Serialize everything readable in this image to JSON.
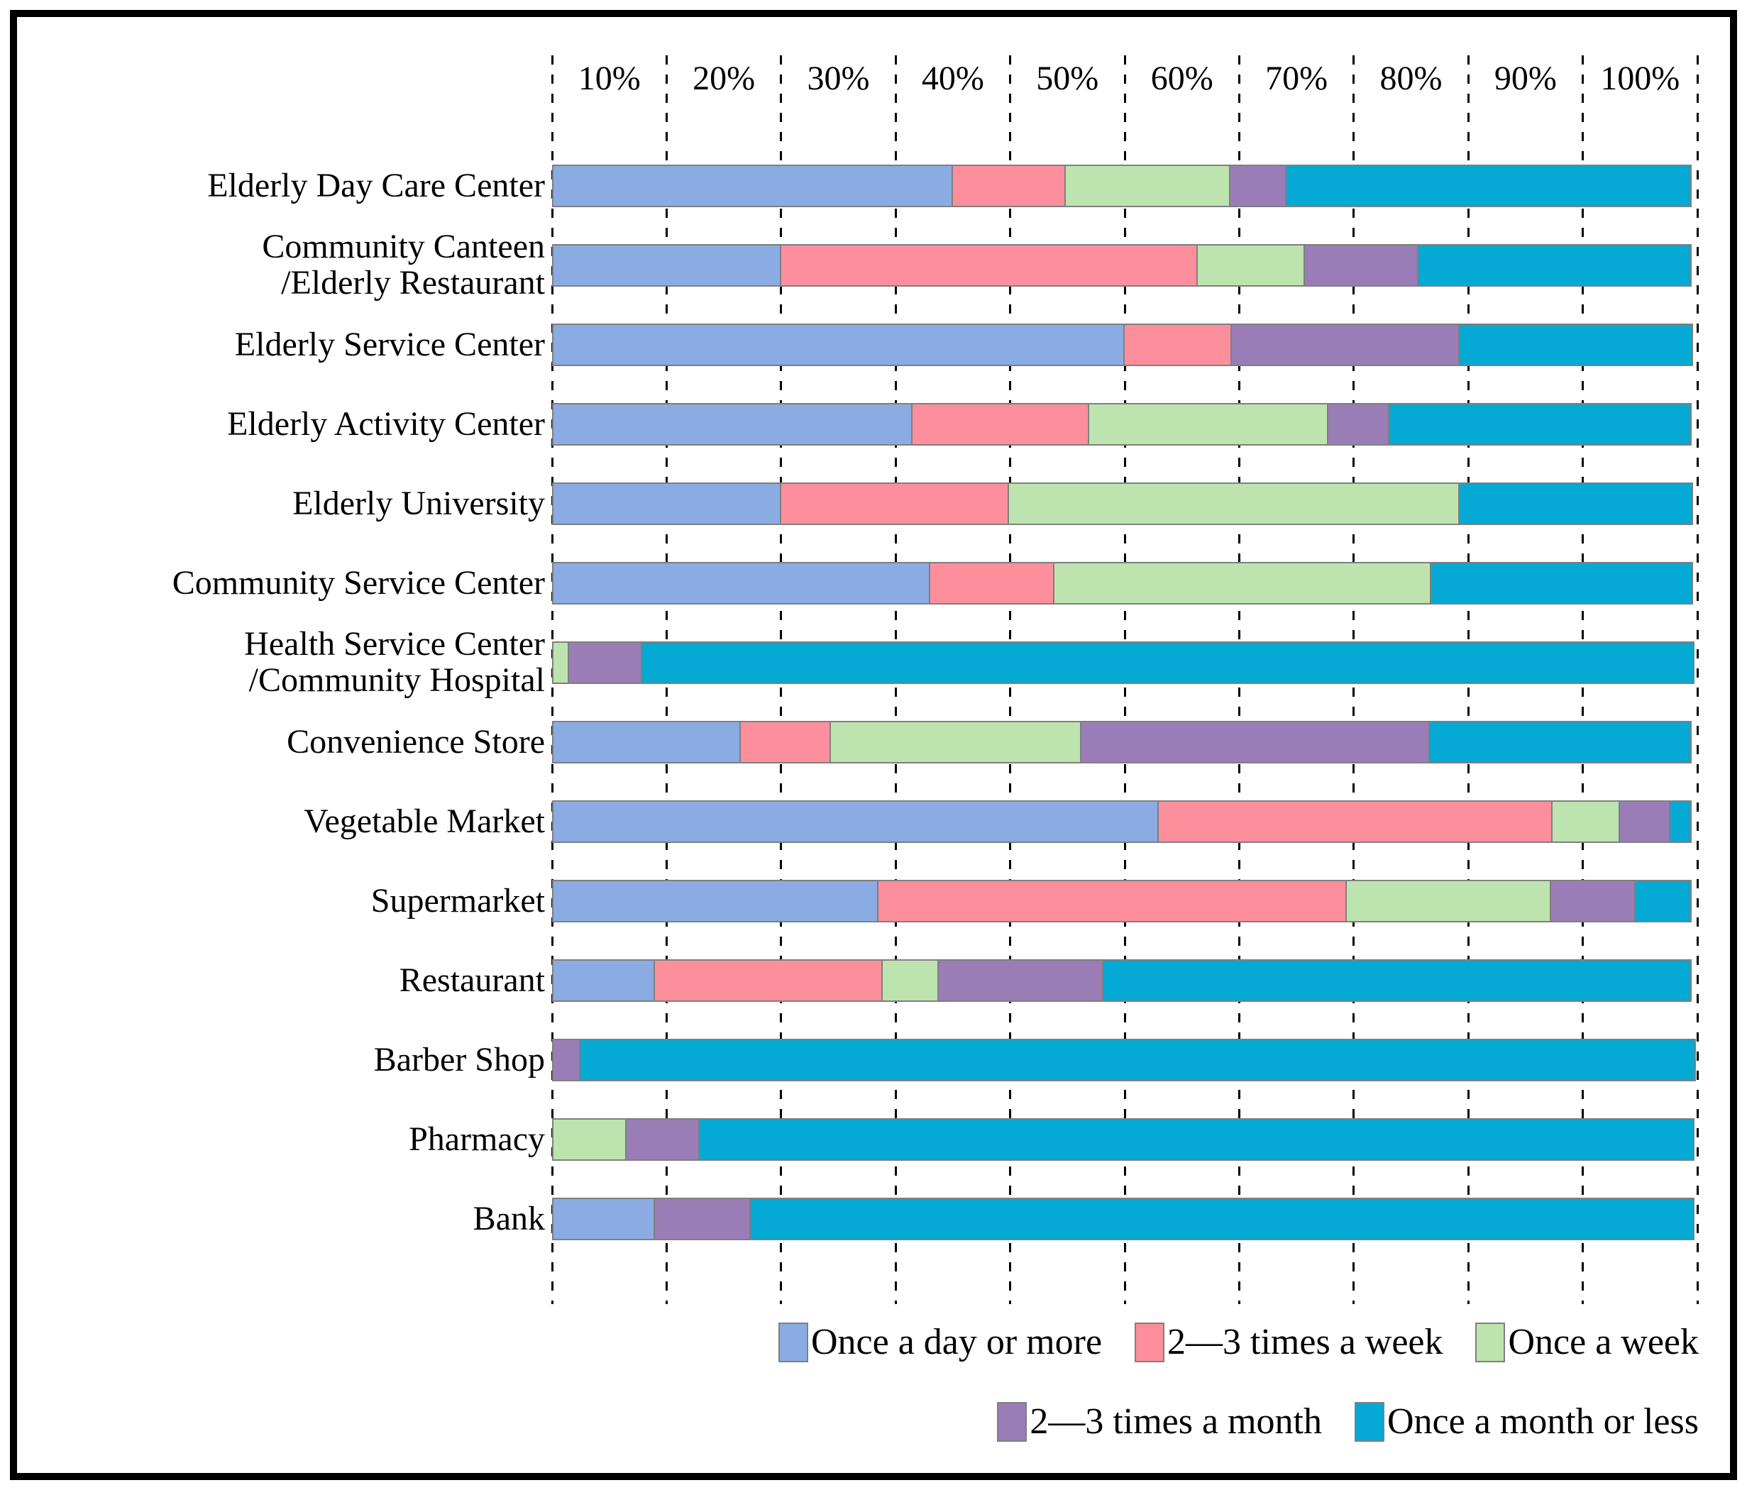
{
  "chart_data": {
    "type": "bar",
    "orientation": "horizontal-stacked",
    "title": "",
    "xlabel": "",
    "ylabel": "",
    "xlim": [
      0,
      100
    ],
    "x_unit": "percent",
    "x_tick_labels": [
      "10%",
      "20%",
      "30%",
      "40%",
      "50%",
      "60%",
      "70%",
      "80%",
      "90%",
      "100%"
    ],
    "grid": "dashed-vertical-every-10-percent",
    "legend_position": "bottom",
    "categories": [
      "Elderly Day Care Center",
      "Community Canteen\n/Elderly Restaurant",
      "Elderly Service Center",
      "Elderly Activity Center",
      "Elderly University",
      "Community Service Center",
      "Health Service Center\n/Community Hospital",
      "Convenience Store",
      "Vegetable Market",
      "Supermarket",
      "Restaurant",
      "Barber Shop",
      "Pharmacy",
      "Bank"
    ],
    "series": [
      {
        "name": "Once a day or more",
        "color": "#8BACE2",
        "values": [
          35,
          20,
          50,
          31.5,
          20,
          33,
          0,
          16.5,
          53,
          28.5,
          9,
          0,
          0,
          9
        ]
      },
      {
        "name": "2—3 times a week",
        "color": "#FD8F9D",
        "values": [
          10,
          36.5,
          9.5,
          15.5,
          20,
          11,
          0,
          8,
          34.5,
          41,
          20,
          0,
          0,
          0
        ]
      },
      {
        "name": "Once a week",
        "color": "#BDE4AF",
        "values": [
          14.5,
          9.5,
          0,
          21,
          39.5,
          33,
          1.5,
          22,
          6,
          18,
          5,
          0,
          6.5,
          0
        ]
      },
      {
        "name": "2—3 times a month",
        "color": "#9A7DB7",
        "values": [
          5,
          10,
          20,
          5.5,
          0,
          0,
          6.5,
          30.5,
          4.5,
          7.5,
          14.5,
          2.5,
          6.5,
          8.5
        ]
      },
      {
        "name": "Once a month or less",
        "color": "#04A9D4",
        "values": [
          35.5,
          24,
          20.5,
          26.5,
          20.5,
          23,
          92,
          23,
          2,
          5,
          51.5,
          97.5,
          87,
          82.5
        ]
      }
    ],
    "colors": {
      "segment_border": "#7f7f7f",
      "grid": "#000000",
      "text": "#000000",
      "frame": "#000000",
      "background": "#ffffff"
    }
  }
}
